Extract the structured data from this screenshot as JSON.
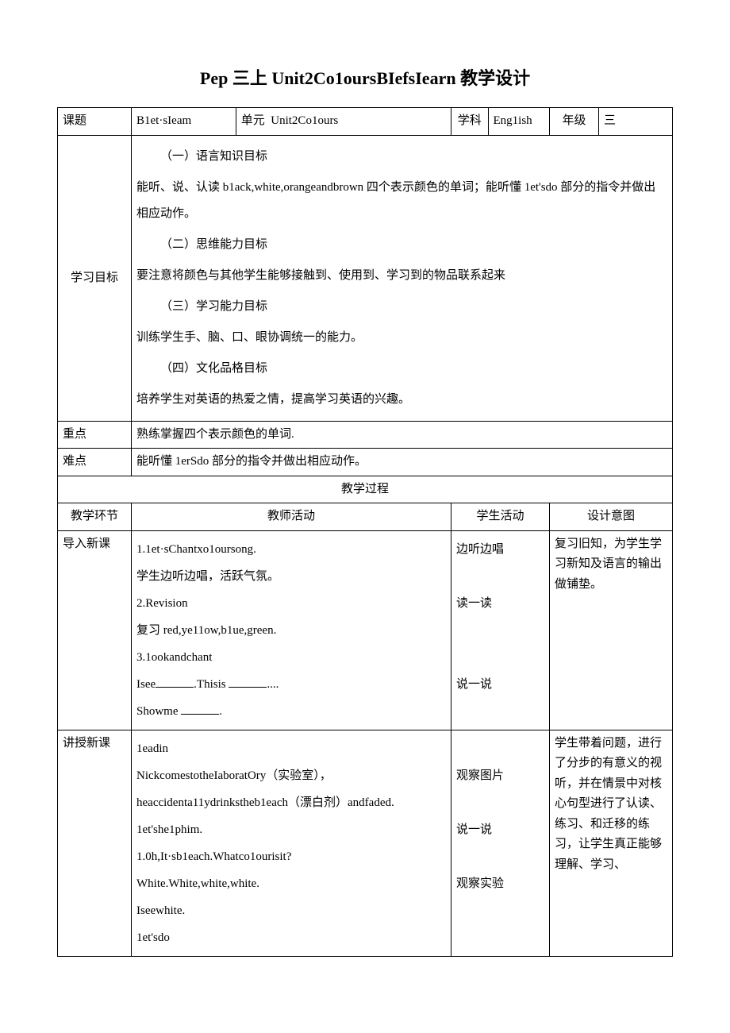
{
  "title": "Pep 三上 Unit2Co1oursBIefsIearn 教学设计",
  "header": {
    "topic_label": "课题",
    "topic_value": "B1et·sIeam",
    "unit_label": "单元",
    "unit_value": "Unit2Co1ours",
    "subject_label": "学科",
    "subject_value": "Eng1ish",
    "grade_label": "年级",
    "grade_value": "三"
  },
  "objectives": {
    "label": "学习目标",
    "sections": [
      {
        "heading": "（一）语言知识目标",
        "body": "能听、说、认读 b1ack,white,orangeandbrown 四个表示颜色的单词；能听懂 1et'sdo 部分的指令并做出相应动作。"
      },
      {
        "heading": "（二）思维能力目标",
        "body": "要注意将颜色与其他学生能够接触到、使用到、学习到的物品联系起来"
      },
      {
        "heading": "（三）学习能力目标",
        "body": "训练学生手、脑、口、眼协调统一的能力。"
      },
      {
        "heading": "（四）文化品格目标",
        "body": "培养学生对英语的热爱之情，提高学习英语的兴趣。"
      }
    ]
  },
  "keypoint": {
    "label": "重点",
    "value": "熟练掌握四个表示颜色的单词."
  },
  "difficulty": {
    "label": "难点",
    "value": "能听懂 1erSdo 部分的指令并做出相应动作。"
  },
  "process_title": "教学过程",
  "columns": {
    "phase": "教学环节",
    "teacher": "教师活动",
    "student": "学生活动",
    "intent": "设计意图"
  },
  "rows": [
    {
      "phase": "导入新课",
      "teacher_lines": [
        "1.1et·sChantxo1oursong.",
        "学生边听边唱，活跃气氛。",
        "2.Revision",
        "复习 red,ye11ow,b1ue,green.",
        "3.1ookandchant"
      ],
      "teacher_fill_prefix1": "Isee",
      "teacher_fill_mid": ".Thisis ",
      "teacher_fill_suffix1": "....",
      "teacher_fill_prefix2": "Showme ",
      "teacher_fill_suffix2": ".",
      "student_lines": [
        "边听边唱",
        "",
        "读一读",
        "",
        "",
        "说一说",
        ""
      ],
      "intent": "复习旧知，为学生学习新知及语言的输出做铺垫。"
    },
    {
      "phase": "讲授新课",
      "teacher_lines": [
        "1eadin",
        "NickcomestotheIaboratOry（实验室），",
        "heaccidenta11ydrinkstheb1each（漂白剂）andfaded.",
        "1et'she1phim.",
        "1.0h,It·sb1each.Whatco1ourisit?",
        "White.White,white,white.",
        "Iseewhite.",
        "1et'sdo"
      ],
      "student_lines": [
        "",
        "观察图片",
        "",
        "说一说",
        "",
        "观察实验",
        "",
        ""
      ],
      "intent": "学生带着问题，进行了分步的有意义的视听，并在情景中对核心句型进行了认读、练习、和迁移的练习，让学生真正能够理解、学习、"
    }
  ]
}
